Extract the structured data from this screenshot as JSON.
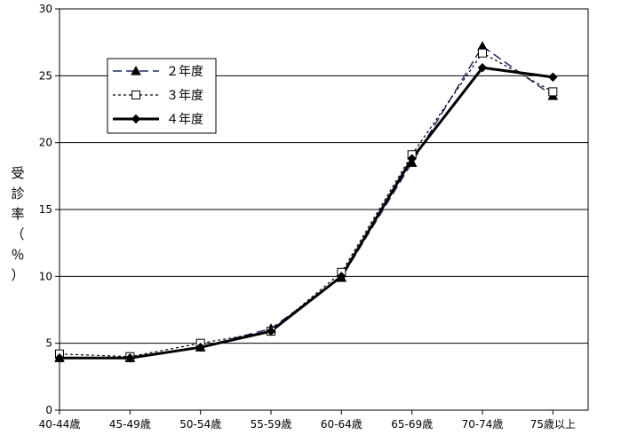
{
  "chart_data": {
    "type": "line",
    "title": "",
    "xlabel": "",
    "ylabel": "受診率（％）",
    "ylabel_chars": [
      "受",
      "診",
      "率",
      "（",
      "％",
      "）"
    ],
    "categories": [
      "40-44歳",
      "45-49歳",
      "50-54歳",
      "55-59歳",
      "60-64歳",
      "65-69歳",
      "70-74歳",
      "75歳以上"
    ],
    "ylim": [
      0,
      30
    ],
    "yticks": [
      0,
      5,
      10,
      15,
      20,
      25,
      30
    ],
    "grid": true,
    "legend_position": "top-left",
    "series": [
      {
        "name": "２年度",
        "values": [
          3.9,
          3.9,
          4.7,
          6.1,
          9.9,
          18.5,
          27.2,
          23.5
        ],
        "color": "#1f2a6b",
        "dash": "10,5",
        "marker": "triangle",
        "width": 1.5
      },
      {
        "name": "３年度",
        "values": [
          4.2,
          4.0,
          5.0,
          5.9,
          10.3,
          19.1,
          26.7,
          23.8
        ],
        "color": "#000000",
        "dash": "3,3",
        "marker": "square-open",
        "width": 1.2
      },
      {
        "name": "４年度",
        "values": [
          3.9,
          3.9,
          4.7,
          5.9,
          10.0,
          18.8,
          25.6,
          24.9
        ],
        "color": "#000000",
        "dash": "",
        "marker": "diamond",
        "width": 3
      }
    ]
  }
}
